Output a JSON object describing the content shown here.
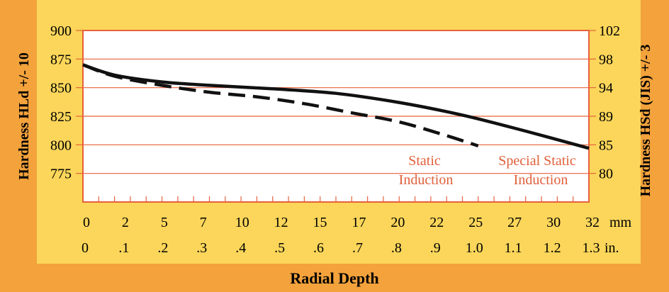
{
  "colors": {
    "outer_frame": "#f3a23c",
    "inner_panel": "#fbd65a",
    "plot_background": "#ffffff",
    "grid_and_axes": "#e8603a",
    "annotation_text": "#e0603a",
    "curves": "#111111"
  },
  "chart_data": {
    "type": "line",
    "title": "",
    "xlabel": "Radial Depth",
    "ylabel_left": "Hardness HLd +/- 10",
    "ylabel_right": "Hardness HSd  (JIS) +/- 3",
    "ylim": [
      750,
      900
    ],
    "xlim_mm": [
      0,
      32
    ],
    "grid": "horizontal",
    "y_ticks_left": [
      "900",
      "875",
      "850",
      "825",
      "800",
      "775"
    ],
    "y_ticks_right": [
      "102",
      "98",
      "94",
      "89",
      "85",
      "80"
    ],
    "x_ticks_mm": [
      "0",
      "2",
      "5",
      "7",
      "10",
      "12",
      "15",
      "17",
      "20",
      "22",
      "25",
      "27",
      "30",
      "32"
    ],
    "x_unit_mm": "mm",
    "x_ticks_in": [
      "0",
      ".1",
      ".2",
      ".3",
      ".4",
      ".5",
      ".6",
      ".7",
      ".8",
      ".9",
      "1.0",
      "1.1",
      "1.2",
      "1.3"
    ],
    "x_unit_in": "in.",
    "series": [
      {
        "name": "Special Static Induction",
        "style": "solid",
        "x": [
          0,
          2,
          5,
          8,
          12,
          16,
          20,
          24,
          28,
          32
        ],
        "y": [
          870,
          861,
          855,
          852,
          849,
          845,
          837,
          826,
          812,
          797
        ]
      },
      {
        "name": "Static Induction",
        "style": "dashed",
        "x": [
          0,
          2,
          5,
          8,
          11,
          14,
          17,
          20,
          23,
          25
        ],
        "y": [
          870,
          860,
          852,
          846,
          842,
          836,
          828,
          820,
          808,
          799
        ]
      }
    ],
    "annotations": [
      {
        "lines": [
          "Static",
          "Induction"
        ],
        "series": "Static Induction"
      },
      {
        "lines": [
          "Special Static",
          "Induction"
        ],
        "series": "Special Static Induction"
      }
    ]
  }
}
